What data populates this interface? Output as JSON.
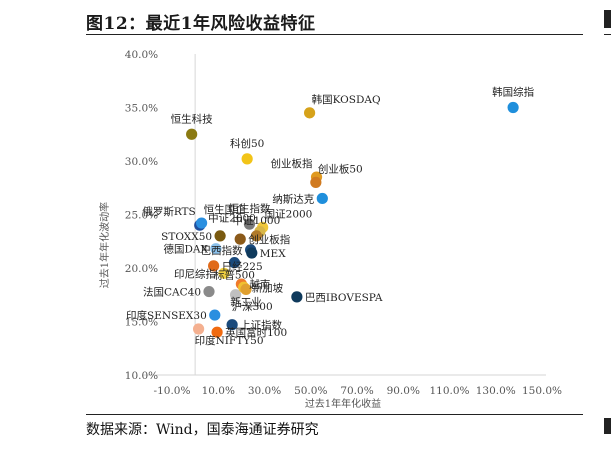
{
  "figure": {
    "title": "图12：最近1年风险收益特征",
    "source": "数据来源：Wind，国泰海通证券研究"
  },
  "chart_data": {
    "type": "scatter",
    "xlabel": "过去1年年化收益",
    "ylabel": "过去1年年化波动率",
    "xlim": [
      -10,
      150
    ],
    "ylim": [
      10,
      40
    ],
    "x_ticks": [
      "-10.0%",
      "10.0%",
      "30.0%",
      "50.0%",
      "70.0%",
      "90.0%",
      "110.0%",
      "130.0%",
      "150.0%"
    ],
    "y_ticks": [
      "10.0%",
      "15.0%",
      "20.0%",
      "25.0%",
      "30.0%",
      "35.0%",
      "40.0%"
    ],
    "grid": false,
    "points": [
      {
        "label": "韩国综指",
        "x": 137.5,
        "y": 35.0,
        "color": "#1f8fdc",
        "label_pos": "above"
      },
      {
        "label": "韩国KOSDAQ",
        "x": 49.5,
        "y": 34.5,
        "color": "#d6a21a",
        "label_pos": "above-right"
      },
      {
        "label": "恒生科技",
        "x": -1.5,
        "y": 32.5,
        "color": "#8b7a12",
        "label_pos": "above"
      },
      {
        "label": "科创50",
        "x": 22.5,
        "y": 30.2,
        "color": "#f2c418",
        "label_pos": "above"
      },
      {
        "label": "创业板指",
        "x": 52.5,
        "y": 28.5,
        "color": "#e09a20",
        "label_pos": "above-left"
      },
      {
        "label": "创业板50",
        "x": 52.2,
        "y": 28.0,
        "color": "#d07a20",
        "label_pos": "above-right"
      },
      {
        "label": "纳斯达克",
        "x": 55.0,
        "y": 26.5,
        "color": "#1f8fdc",
        "label_pos": "left"
      },
      {
        "label": "俄罗斯RTS",
        "x": 2.0,
        "y": 24.0,
        "color": "#1f4e9c",
        "label_pos": "above-left"
      },
      {
        "label": "恒生国企",
        "x": 2.8,
        "y": 24.2,
        "color": "#2a8fe0",
        "label_pos": "above-right"
      },
      {
        "label": "恒生指数",
        "x": 23.5,
        "y": 24.1,
        "color": "#7a7a7a",
        "label_pos": "above"
      },
      {
        "label": "国证2000",
        "x": 29.2,
        "y": 23.8,
        "color": "#f0c83a",
        "label_pos": "above-right"
      },
      {
        "label": "中证2000",
        "x": 28.0,
        "y": 23.4,
        "color": "#d8b648",
        "label_pos": "above-left"
      },
      {
        "label": "中证1000",
        "x": 26.5,
        "y": 23.0,
        "color": "#b07a2a",
        "label_pos": "above"
      },
      {
        "label": "STOXX50",
        "x": 10.8,
        "y": 23.0,
        "color": "#7a5a10",
        "label_pos": "left"
      },
      {
        "label": "创业板指",
        "x": 19.5,
        "y": 22.7,
        "color": "#8b5a1a",
        "label_pos": "right"
      },
      {
        "label": "德国DAX",
        "x": 9.0,
        "y": 21.8,
        "color": "#8ac0ea",
        "label_pos": "left"
      },
      {
        "label": "巴西指数",
        "x": 24.0,
        "y": 21.7,
        "color": "#1a4a7c",
        "label_pos": "left"
      },
      {
        "label": "MEX",
        "x": 24.5,
        "y": 21.4,
        "color": "#0f3a5c",
        "label_pos": "right"
      },
      {
        "label": "标普500",
        "x": 17.0,
        "y": 20.5,
        "color": "#1a4a7c",
        "label_pos": "below"
      },
      {
        "label": "日经225",
        "x": 8.0,
        "y": 20.2,
        "color": "#e06a1a",
        "label_pos": "right"
      },
      {
        "label": "印尼综指",
        "x": 12.5,
        "y": 19.5,
        "color": "#f0d040",
        "label_pos": "left"
      },
      {
        "label": "法国CAC40",
        "x": 6.0,
        "y": 17.8,
        "color": "#8a8a8a",
        "label_pos": "left"
      },
      {
        "label": "沪深300",
        "x": 17.5,
        "y": 17.5,
        "color": "#c0c0c0",
        "label_pos": "below-right"
      },
      {
        "label": "越南",
        "x": 20.0,
        "y": 18.5,
        "color": "#f07a2a",
        "label_pos": "right"
      },
      {
        "label": "新加坡",
        "x": 21.0,
        "y": 18.2,
        "color": "#f0c030",
        "label_pos": "right"
      },
      {
        "label": "新工业",
        "x": 22.0,
        "y": 18.0,
        "color": "#e0a030",
        "label_pos": "below"
      },
      {
        "label": "巴西IBOVESPA",
        "x": 44.0,
        "y": 17.3,
        "color": "#0f3a5c",
        "label_pos": "right"
      },
      {
        "label": "印度SENSEX30",
        "x": 8.5,
        "y": 15.6,
        "color": "#2a8fe0",
        "label_pos": "left"
      },
      {
        "label": "上证指数",
        "x": 16.0,
        "y": 14.7,
        "color": "#1a4a7c",
        "label_pos": "right"
      },
      {
        "label": "印度NIFTY50",
        "x": 1.5,
        "y": 14.3,
        "color": "#f4b090",
        "label_pos": "below-right"
      },
      {
        "label": "英国富时100",
        "x": 9.5,
        "y": 14.0,
        "color": "#f06a10",
        "label_pos": "right"
      }
    ]
  }
}
